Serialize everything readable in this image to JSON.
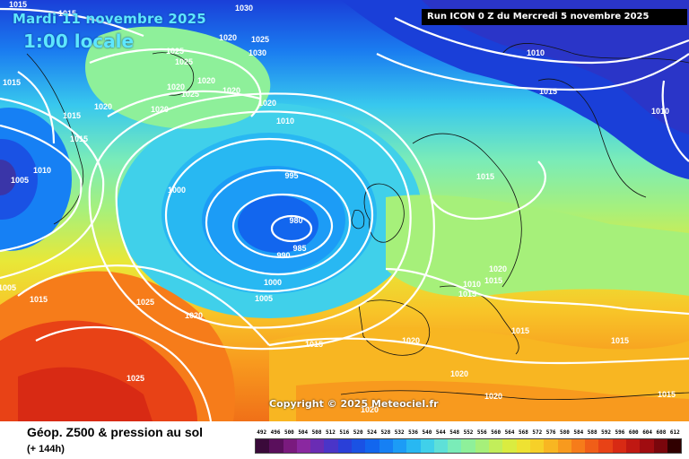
{
  "header": {
    "date_line": "Mardi 11 novembre 2025",
    "time_line": "1:00 locale",
    "run_info": "Run ICON 0 Z du Mercredi 5 novembre 2025"
  },
  "copyright": "Copyright © 2025 Meteociel.fr",
  "footer": {
    "title": "Géop. Z500 & pression au sol",
    "subtitle": "(+ 144h)"
  },
  "scale": {
    "ticks": [
      "492",
      "496",
      "500",
      "504",
      "508",
      "512",
      "516",
      "520",
      "524",
      "528",
      "532",
      "536",
      "540",
      "544",
      "548",
      "552",
      "556",
      "560",
      "564",
      "568",
      "572",
      "576",
      "580",
      "584",
      "588",
      "592",
      "596",
      "600",
      "604",
      "608",
      "612"
    ],
    "colors": [
      "#3a0a3a",
      "#5a0f5c",
      "#7a1a7e",
      "#8a28a0",
      "#6a2cb4",
      "#4a35c8",
      "#2a3fd8",
      "#1a52e4",
      "#1266ee",
      "#1680f4",
      "#1c9cf6",
      "#28b8f2",
      "#40d0ea",
      "#5ee0d8",
      "#7aecb8",
      "#8ef09a",
      "#a6f07a",
      "#c2ee5a",
      "#daec40",
      "#eee232",
      "#f6d028",
      "#f8b622",
      "#f89a1e",
      "#f67c1a",
      "#f05e18",
      "#e84216",
      "#d82a14",
      "#c01812",
      "#a00c10",
      "#7a060c",
      "#300000"
    ]
  },
  "isobars": [
    {
      "label": "1015",
      "group": "a"
    },
    {
      "label": "1015",
      "group": "a"
    },
    {
      "label": "1030",
      "group": "a"
    },
    {
      "label": "1020",
      "group": "a"
    },
    {
      "label": "1025",
      "group": "a"
    },
    {
      "label": "1025",
      "group": "a"
    },
    {
      "label": "1025",
      "group": "a"
    },
    {
      "label": "1030",
      "group": "a"
    },
    {
      "label": "1020",
      "group": "a"
    },
    {
      "label": "1020",
      "group": "a"
    },
    {
      "label": "1025",
      "group": "a"
    },
    {
      "label": "1020",
      "group": "a"
    },
    {
      "label": "1020",
      "group": "a"
    },
    {
      "label": "1010",
      "group": "a"
    },
    {
      "label": "1015",
      "group": "a"
    },
    {
      "label": "1020",
      "group": "a"
    },
    {
      "label": "1020",
      "group": "a"
    },
    {
      "label": "1010",
      "group": "a"
    },
    {
      "label": "1015",
      "group": "a"
    },
    {
      "label": "1015",
      "group": "a"
    },
    {
      "label": "1010",
      "group": "a"
    },
    {
      "label": "1005",
      "group": "a"
    },
    {
      "label": "1010",
      "group": "a"
    },
    {
      "label": "995",
      "group": "a"
    },
    {
      "label": "1000",
      "group": "a"
    },
    {
      "label": "980",
      "group": "a"
    },
    {
      "label": "985",
      "group": "a"
    },
    {
      "label": "990",
      "group": "a"
    },
    {
      "label": "1015",
      "group": "a"
    },
    {
      "label": "1010",
      "group": "a"
    },
    {
      "label": "1015",
      "group": "a"
    },
    {
      "label": "1020",
      "group": "a"
    },
    {
      "label": "1015",
      "group": "a"
    },
    {
      "label": "1000",
      "group": "a"
    },
    {
      "label": "1005",
      "group": "a"
    },
    {
      "label": "1005",
      "group": "a"
    },
    {
      "label": "1015",
      "group": "a"
    },
    {
      "label": "1025",
      "group": "a"
    },
    {
      "label": "1020",
      "group": "a"
    },
    {
      "label": "1015",
      "group": "a"
    },
    {
      "label": "1020",
      "group": "a"
    },
    {
      "label": "1015",
      "group": "a"
    },
    {
      "label": "1015",
      "group": "a"
    },
    {
      "label": "1015",
      "group": "a"
    },
    {
      "label": "1025",
      "group": "a"
    },
    {
      "label": "1020",
      "group": "a"
    },
    {
      "label": "1020",
      "group": "a"
    },
    {
      "label": "1020",
      "group": "a"
    },
    {
      "label": "1015",
      "group": "a"
    }
  ]
}
